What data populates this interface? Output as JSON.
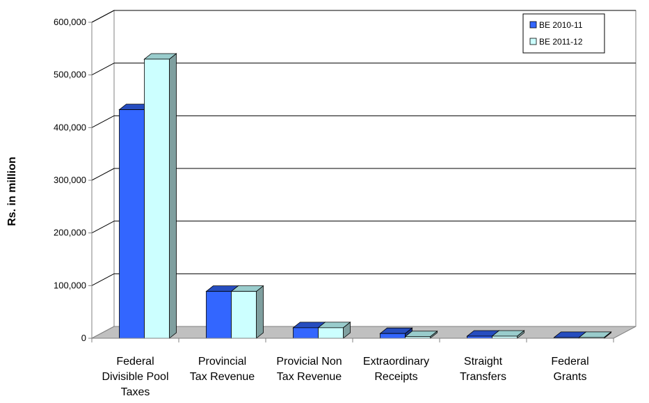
{
  "chart_data": {
    "type": "bar",
    "categories": [
      [
        "Federal",
        "Divisible Pool",
        "Taxes"
      ],
      [
        "Provincial",
        "Tax Revenue"
      ],
      [
        "Provicial Non",
        "Tax Revenue"
      ],
      [
        "Extraordinary",
        "Receipts"
      ],
      [
        "Straight",
        "Transfers"
      ],
      [
        "Federal",
        "Grants"
      ]
    ],
    "series": [
      {
        "name": "BE 2010-11",
        "values": [
          434000,
          89000,
          20000,
          9000,
          4000,
          1500
        ],
        "color": "#3366ff"
      },
      {
        "name": "BE 2011-12",
        "values": [
          530000,
          89000,
          20000,
          3000,
          4000,
          1500
        ],
        "color": "#ccffff"
      }
    ],
    "ylabel": "Rs. in million",
    "ylim": [
      0,
      600000
    ],
    "yticks": [
      0,
      100000,
      200000,
      300000,
      400000,
      500000,
      600000
    ],
    "ytick_labels": [
      "0",
      "100,000",
      "200,000",
      "300,000",
      "400,000",
      "500,000",
      "600,000"
    ],
    "grid": true,
    "legend_position": "top-right",
    "three_d": true
  }
}
